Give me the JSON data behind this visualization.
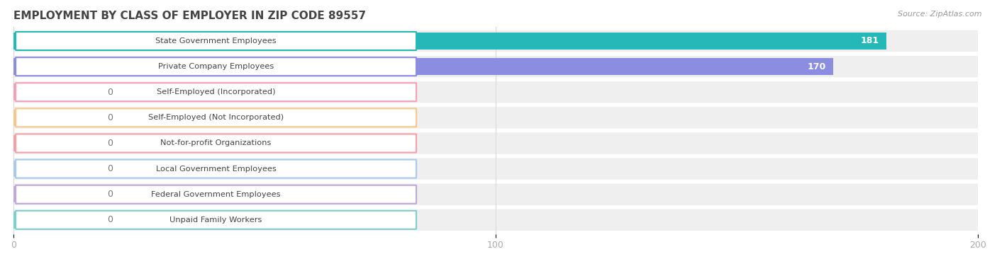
{
  "title": "EMPLOYMENT BY CLASS OF EMPLOYER IN ZIP CODE 89557",
  "source": "Source: ZipAtlas.com",
  "categories": [
    "State Government Employees",
    "Private Company Employees",
    "Self-Employed (Incorporated)",
    "Self-Employed (Not Incorporated)",
    "Not-for-profit Organizations",
    "Local Government Employees",
    "Federal Government Employees",
    "Unpaid Family Workers"
  ],
  "values": [
    181,
    170,
    0,
    0,
    0,
    0,
    0,
    0
  ],
  "bar_colors": [
    "#26b8b8",
    "#8b8de0",
    "#f4a0b4",
    "#f5c88a",
    "#f4a0a8",
    "#a8c8f0",
    "#c0a8d8",
    "#7ecece"
  ],
  "label_bg_colors": [
    "#eafafafa",
    "#eaeaf8",
    "#fce8f0",
    "#fdf3e8",
    "#fce8ea",
    "#eaf0fc",
    "#f0eaf8",
    "#e4f6f6"
  ],
  "label_border_colors": [
    "#26b8b8",
    "#8b8de0",
    "#f4a0b4",
    "#f5c88a",
    "#f4a0a8",
    "#a8c8f0",
    "#c0a8d8",
    "#7ecece"
  ],
  "xlim": [
    0,
    200
  ],
  "xticks": [
    0,
    100,
    200
  ],
  "row_bg_color": "#efefef",
  "background_color": "#ffffff",
  "title_fontsize": 11,
  "bar_height": 0.65,
  "value_label_color": "#ffffff",
  "axis_label_color": "#aaaaaa",
  "title_color": "#444444",
  "zero_stub_value": 18
}
